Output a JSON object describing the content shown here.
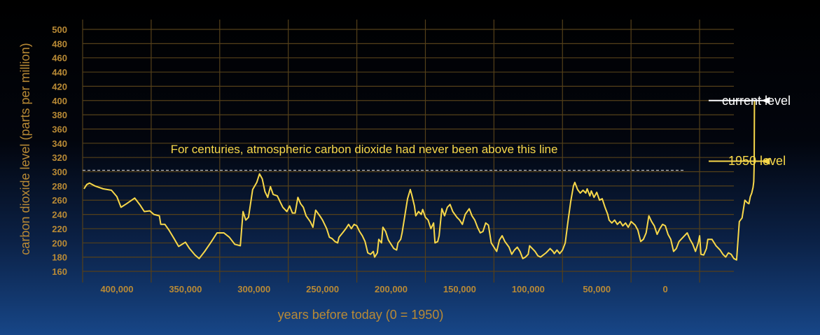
{
  "chart_data": {
    "type": "line",
    "ylabel": "carbon dioxide level (parts per million)",
    "xlabel": "years before today (0 = 1950)",
    "ylim": [
      160,
      500
    ],
    "xlim": [
      425000,
      -50000
    ],
    "y_ticks": [
      160,
      180,
      200,
      220,
      240,
      260,
      280,
      300,
      320,
      340,
      360,
      380,
      400,
      420,
      440,
      460,
      480,
      500
    ],
    "x_ticks": [
      {
        "value": 400000,
        "label": "400,000"
      },
      {
        "value": 350000,
        "label": "350,000"
      },
      {
        "value": 300000,
        "label": "300,000"
      },
      {
        "value": 250000,
        "label": "250,000"
      },
      {
        "value": 200000,
        "label": "200,000"
      },
      {
        "value": 150000,
        "label": "150,000"
      },
      {
        "value": 100000,
        "label": "100,000"
      },
      {
        "value": 50000,
        "label": "50,000"
      },
      {
        "value": 0,
        "label": "0"
      }
    ],
    "x_gridlines": [
      375000,
      325000,
      275000,
      225000,
      175000,
      125000,
      75000,
      25000,
      -25000
    ],
    "grid": true,
    "series": [
      {
        "name": "",
        "color": "#f8d84a",
        "points": [
          [
            424000,
            276
          ],
          [
            422000,
            282
          ],
          [
            420000,
            284
          ],
          [
            416000,
            280
          ],
          [
            410000,
            276
          ],
          [
            404000,
            274
          ],
          [
            400000,
            265
          ],
          [
            397000,
            250
          ],
          [
            393000,
            255
          ],
          [
            387000,
            263
          ],
          [
            383000,
            253
          ],
          [
            380000,
            244
          ],
          [
            376000,
            245
          ],
          [
            373000,
            240
          ],
          [
            369000,
            238
          ],
          [
            368000,
            226
          ],
          [
            365000,
            226
          ],
          [
            362000,
            218
          ],
          [
            358000,
            205
          ],
          [
            355000,
            195
          ],
          [
            350000,
            201
          ],
          [
            347000,
            192
          ],
          [
            343000,
            183
          ],
          [
            340000,
            178
          ],
          [
            336000,
            188
          ],
          [
            331000,
            202
          ],
          [
            327000,
            214
          ],
          [
            322000,
            214
          ],
          [
            318000,
            208
          ],
          [
            314000,
            198
          ],
          [
            310000,
            196
          ],
          [
            308000,
            244
          ],
          [
            306000,
            232
          ],
          [
            304000,
            236
          ],
          [
            301000,
            275
          ],
          [
            298000,
            285
          ],
          [
            296000,
            297
          ],
          [
            294000,
            290
          ],
          [
            292000,
            272
          ],
          [
            290000,
            264
          ],
          [
            288000,
            279
          ],
          [
            286000,
            268
          ],
          [
            283000,
            266
          ],
          [
            281000,
            258
          ],
          [
            279000,
            250
          ],
          [
            276000,
            244
          ],
          [
            274000,
            252
          ],
          [
            272000,
            242
          ],
          [
            270000,
            242
          ],
          [
            268000,
            264
          ],
          [
            266000,
            255
          ],
          [
            264000,
            250
          ],
          [
            262000,
            238
          ],
          [
            259000,
            230
          ],
          [
            257000,
            222
          ],
          [
            255000,
            246
          ],
          [
            252000,
            238
          ],
          [
            250000,
            232
          ],
          [
            247000,
            220
          ],
          [
            245000,
            208
          ],
          [
            243000,
            206
          ],
          [
            241000,
            202
          ],
          [
            239000,
            200
          ],
          [
            238000,
            208
          ],
          [
            235000,
            215
          ],
          [
            233000,
            220
          ],
          [
            231000,
            226
          ],
          [
            229000,
            220
          ],
          [
            227000,
            226
          ],
          [
            225000,
            224
          ],
          [
            223000,
            216
          ],
          [
            221000,
            210
          ],
          [
            219000,
            202
          ],
          [
            217000,
            186
          ],
          [
            215000,
            184
          ],
          [
            213000,
            188
          ],
          [
            212000,
            180
          ],
          [
            210000,
            186
          ],
          [
            209000,
            205
          ],
          [
            207000,
            200
          ],
          [
            206000,
            222
          ],
          [
            204000,
            216
          ],
          [
            202000,
            204
          ],
          [
            200000,
            198
          ],
          [
            198000,
            192
          ],
          [
            196000,
            190
          ],
          [
            195000,
            200
          ],
          [
            193000,
            205
          ],
          [
            192000,
            214
          ],
          [
            190000,
            238
          ],
          [
            188000,
            262
          ],
          [
            186000,
            275
          ],
          [
            185000,
            268
          ],
          [
            183000,
            252
          ],
          [
            182000,
            238
          ],
          [
            180000,
            244
          ],
          [
            178000,
            240
          ],
          [
            177000,
            247
          ],
          [
            175000,
            236
          ],
          [
            173000,
            232
          ],
          [
            171000,
            220
          ],
          [
            169000,
            228
          ],
          [
            168000,
            200
          ],
          [
            166000,
            202
          ],
          [
            165000,
            210
          ],
          [
            163000,
            248
          ],
          [
            161000,
            238
          ],
          [
            159000,
            250
          ],
          [
            157000,
            254
          ],
          [
            155000,
            244
          ],
          [
            152000,
            236
          ],
          [
            150000,
            232
          ],
          [
            148000,
            226
          ],
          [
            146000,
            240
          ],
          [
            143000,
            248
          ],
          [
            141000,
            238
          ],
          [
            139000,
            232
          ],
          [
            137000,
            222
          ],
          [
            135000,
            214
          ],
          [
            133000,
            216
          ],
          [
            131000,
            228
          ],
          [
            129000,
            225
          ],
          [
            127000,
            200
          ],
          [
            125000,
            194
          ],
          [
            123000,
            188
          ],
          [
            121000,
            204
          ],
          [
            119000,
            210
          ],
          [
            117000,
            202
          ],
          [
            114000,
            194
          ],
          [
            112000,
            184
          ],
          [
            110000,
            190
          ],
          [
            108000,
            194
          ],
          [
            106000,
            188
          ],
          [
            104000,
            178
          ],
          [
            102000,
            180
          ],
          [
            100000,
            184
          ],
          [
            99000,
            196
          ],
          [
            97000,
            192
          ],
          [
            95000,
            188
          ],
          [
            93000,
            182
          ],
          [
            91000,
            180
          ],
          [
            87000,
            186
          ],
          [
            84000,
            192
          ],
          [
            82000,
            188
          ],
          [
            81000,
            185
          ],
          [
            79000,
            190
          ],
          [
            77000,
            185
          ],
          [
            75000,
            190
          ],
          [
            73000,
            200
          ],
          [
            71000,
            230
          ],
          [
            69000,
            258
          ],
          [
            67000,
            280
          ],
          [
            66000,
            285
          ],
          [
            64000,
            275
          ],
          [
            62000,
            270
          ],
          [
            60000,
            274
          ],
          [
            58000,
            270
          ],
          [
            57000,
            276
          ],
          [
            55000,
            266
          ],
          [
            54000,
            273
          ],
          [
            52000,
            264
          ],
          [
            50000,
            271
          ],
          [
            48000,
            260
          ],
          [
            46000,
            262
          ],
          [
            44000,
            250
          ],
          [
            42000,
            240
          ],
          [
            41000,
            232
          ],
          [
            39000,
            228
          ],
          [
            37000,
            232
          ],
          [
            35000,
            226
          ],
          [
            33000,
            230
          ],
          [
            31000,
            224
          ],
          [
            29000,
            228
          ],
          [
            27000,
            222
          ],
          [
            25000,
            230
          ],
          [
            22000,
            225
          ],
          [
            20000,
            218
          ],
          [
            18000,
            202
          ],
          [
            16000,
            205
          ],
          [
            14000,
            214
          ],
          [
            12000,
            238
          ],
          [
            10000,
            230
          ],
          [
            8000,
            224
          ],
          [
            6000,
            212
          ],
          [
            4000,
            220
          ],
          [
            2000,
            226
          ],
          [
            0,
            224
          ],
          [
            -2000,
            212
          ],
          [
            -4000,
            205
          ],
          [
            -6000,
            188
          ],
          [
            -8000,
            192
          ],
          [
            -10000,
            202
          ],
          [
            -14000,
            210
          ],
          [
            -16000,
            214
          ],
          [
            -18000,
            205
          ],
          [
            -20000,
            198
          ],
          [
            -22000,
            188
          ],
          [
            -24000,
            200
          ],
          [
            -25000,
            210
          ],
          [
            -26000,
            184
          ],
          [
            -28000,
            183
          ],
          [
            -30000,
            192
          ],
          [
            -31000,
            205
          ],
          [
            -34000,
            205
          ],
          [
            -37000,
            196
          ],
          [
            -40000,
            190
          ],
          [
            -42000,
            184
          ],
          [
            -44000,
            180
          ],
          [
            -46000,
            186
          ],
          [
            -48000,
            184
          ],
          [
            -50000,
            178
          ],
          [
            -52000,
            176
          ],
          [
            -54000,
            230
          ],
          [
            -56000,
            235
          ],
          [
            -58000,
            260
          ],
          [
            -60000,
            256
          ],
          [
            -61000,
            255
          ],
          [
            -62000,
            265
          ],
          [
            -63000,
            270
          ],
          [
            -64000,
            278
          ],
          [
            -64500,
            286
          ],
          [
            -64800,
            310
          ],
          [
            -65000,
            400
          ]
        ]
      }
    ],
    "reference_line": {
      "value": 302,
      "style": "dashed"
    },
    "annotations": {
      "centuries": "For centuries, atmospheric carbon dioxide had never been above this line",
      "current": "current level",
      "level1950": "1950 level"
    },
    "colors": {
      "axis_text": "#b98a35",
      "grid": "#54401a",
      "line": "#f8d84a",
      "annotation_yellow": "#f8d84a",
      "annotation_white": "#ffffff"
    }
  }
}
